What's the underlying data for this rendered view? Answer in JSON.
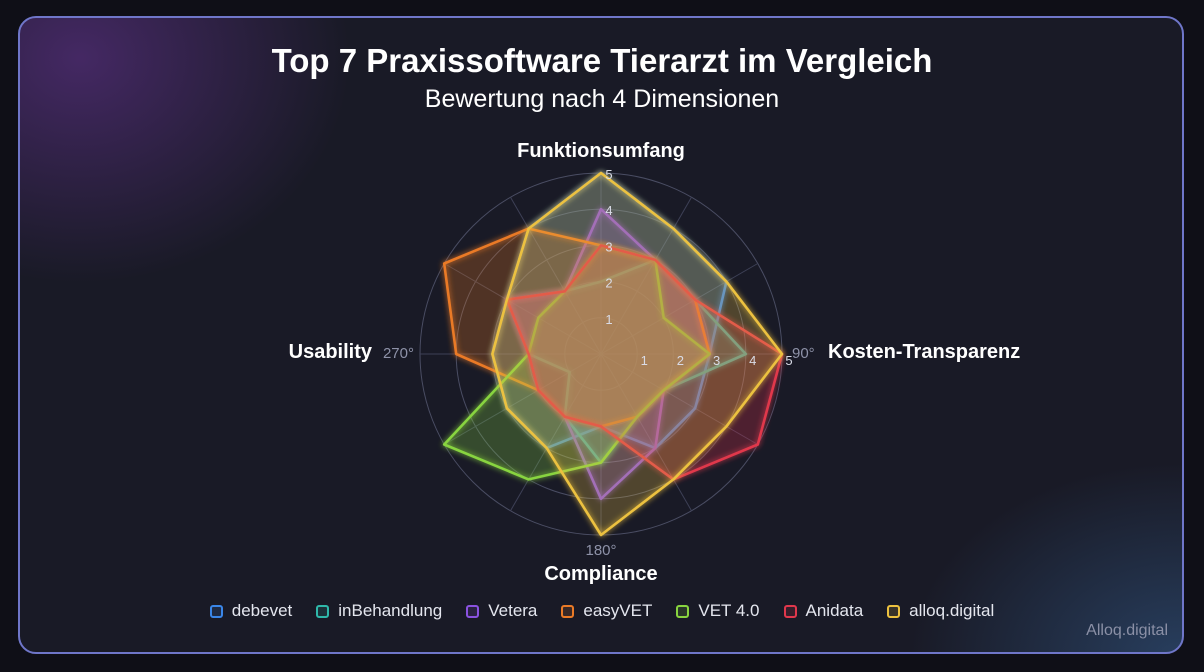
{
  "title": "Top 7 Praxissoftware Tierarzt im Vergleich",
  "subtitle": "Bewertung nach 4 Dimensionen",
  "watermark": "Alloq.digital",
  "chart_data": {
    "type": "radar",
    "axes": [
      {
        "label": "Funktionsumfang",
        "angle_label": ""
      },
      {
        "label": "Kosten-Transparenz",
        "angle_label": "90°"
      },
      {
        "label": "Compliance",
        "angle_label": "180°"
      },
      {
        "label": "Usability",
        "angle_label": "270°"
      }
    ],
    "rlim": [
      0,
      5
    ],
    "r_ticks": [
      "1",
      "2",
      "3",
      "4",
      "5"
    ],
    "grid": true,
    "legend_position": "bottom",
    "series": [
      {
        "name": "debevet",
        "color": "#3a86e8",
        "values": [
          5,
          4,
          4,
          3,
          3,
          3,
          2,
          3,
          3,
          3,
          3,
          4
        ]
      },
      {
        "name": "inBehandlung",
        "color": "#2fb8aa",
        "values": [
          2,
          3,
          3,
          4,
          2,
          2,
          3,
          2,
          1,
          2,
          3,
          2
        ]
      },
      {
        "name": "Vetera",
        "color": "#8a52e0",
        "values": [
          4,
          3,
          3,
          3,
          2,
          3,
          4,
          2,
          2,
          2,
          3,
          2
        ]
      },
      {
        "name": "easyVET",
        "color": "#ea7a26",
        "values": [
          3,
          3,
          3,
          3,
          2,
          2,
          2,
          2,
          2,
          4,
          5,
          4
        ]
      },
      {
        "name": "VET 4.0",
        "color": "#88d43f",
        "values": [
          3,
          3,
          2,
          3,
          2,
          2,
          3,
          4,
          5,
          2,
          2,
          2
        ]
      },
      {
        "name": "Anidata",
        "color": "#e0374c",
        "values": [
          3,
          3,
          3,
          5,
          5,
          4,
          2,
          2,
          2,
          2,
          3,
          2
        ]
      },
      {
        "name": "alloq.digital",
        "color": "#ecc13f",
        "values": [
          5,
          4,
          4,
          5,
          4,
          4,
          5,
          3,
          3,
          3,
          3,
          4
        ]
      }
    ]
  }
}
